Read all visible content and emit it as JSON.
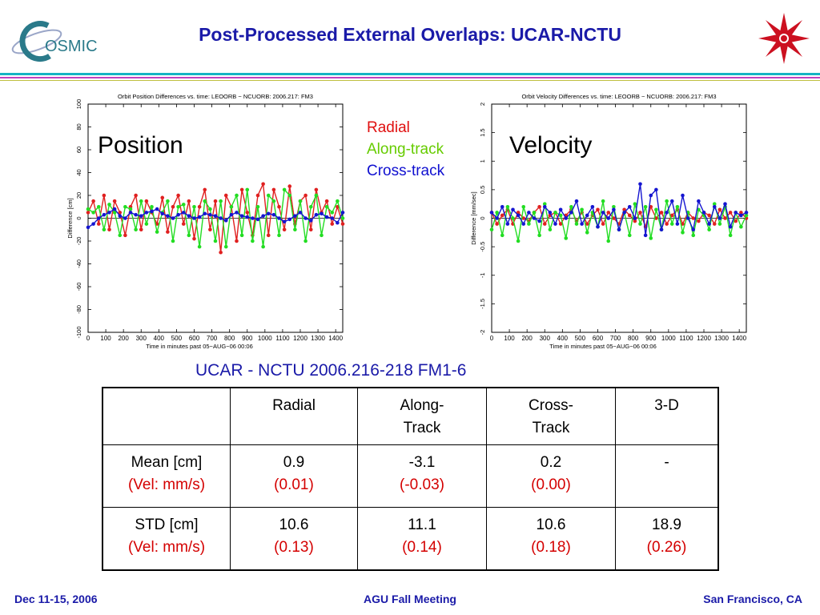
{
  "header": {
    "title": "Post-Processed External Overlaps: UCAR-NCTU",
    "logo_text": "OSMIC"
  },
  "legend": [
    {
      "label": "Radial",
      "color": "#e01010"
    },
    {
      "label": "Along-track",
      "color": "#66cc00"
    },
    {
      "label": "Cross-track",
      "color": "#1010d0"
    }
  ],
  "colors": {
    "radial": "#e02020",
    "along": "#22dd22",
    "cross": "#1515d0",
    "title_blue": "#1a1aa8",
    "table_red": "#d40000"
  },
  "chart_data": [
    {
      "type": "line",
      "label": "Position",
      "title": "Orbit Position Differences vs. time: LEOORB − NCUORB: 2006.217: FM3",
      "xlabel": "Time in minutes past 05−AUG−06 00:06",
      "ylabel": "Difference [cm]",
      "xlim": [
        0,
        1440
      ],
      "ylim": [
        -100,
        100
      ],
      "xticks": [
        0,
        100,
        200,
        300,
        400,
        500,
        600,
        700,
        800,
        900,
        1000,
        1100,
        1200,
        1300,
        1400
      ],
      "yticks": [
        -100,
        -80,
        -60,
        -40,
        -20,
        0,
        20,
        40,
        60,
        80,
        100
      ],
      "x": [
        0,
        30,
        60,
        90,
        120,
        150,
        180,
        210,
        240,
        270,
        300,
        330,
        360,
        390,
        420,
        450,
        480,
        510,
        540,
        570,
        600,
        630,
        660,
        690,
        720,
        750,
        780,
        810,
        840,
        870,
        900,
        930,
        960,
        990,
        1020,
        1050,
        1080,
        1110,
        1140,
        1170,
        1200,
        1230,
        1260,
        1290,
        1320,
        1350,
        1380,
        1410,
        1440
      ],
      "series": [
        {
          "name": "Radial",
          "values": [
            5,
            15,
            -5,
            20,
            -10,
            15,
            5,
            -15,
            10,
            20,
            -10,
            15,
            5,
            -5,
            18,
            -12,
            10,
            20,
            -5,
            15,
            -18,
            10,
            25,
            -10,
            15,
            -30,
            20,
            10,
            -20,
            25,
            5,
            -15,
            20,
            30,
            -15,
            25,
            10,
            -10,
            28,
            -5,
            15,
            20,
            -10,
            25,
            5,
            15,
            -5,
            10,
            -5
          ]
        },
        {
          "name": "Along-track",
          "values": [
            8,
            5,
            10,
            -10,
            12,
            5,
            -15,
            10,
            8,
            -10,
            15,
            -5,
            10,
            -12,
            5,
            15,
            -20,
            10,
            12,
            -15,
            10,
            -25,
            15,
            8,
            -20,
            15,
            -25,
            10,
            20,
            -15,
            25,
            -20,
            10,
            -25,
            20,
            15,
            -15,
            25,
            20,
            -10,
            15,
            -20,
            10,
            20,
            -15,
            10,
            5,
            15,
            0
          ]
        },
        {
          "name": "Cross-track",
          "values": [
            -8,
            -5,
            0,
            3,
            5,
            8,
            2,
            0,
            5,
            3,
            2,
            5,
            6,
            8,
            4,
            2,
            0,
            3,
            5,
            2,
            0,
            1,
            4,
            3,
            2,
            0,
            -2,
            3,
            5,
            2,
            1,
            0,
            -1,
            2,
            4,
            3,
            0,
            -3,
            -1,
            2,
            5,
            0,
            -2,
            3,
            4,
            1,
            0,
            -4,
            5
          ]
        }
      ]
    },
    {
      "type": "line",
      "label": "Velocity",
      "title": "Orbit Velocity Differences vs. time: LEOORB − NCUORB: 2006.217: FM3",
      "xlabel": "Time in minutes past 05−AUG−06 00:06",
      "ylabel": "Difference [mm/sec]",
      "xlim": [
        0,
        1440
      ],
      "ylim": [
        -2.0,
        2.0
      ],
      "xticks": [
        0,
        100,
        200,
        300,
        400,
        500,
        600,
        700,
        800,
        900,
        1000,
        1100,
        1200,
        1300,
        1400
      ],
      "yticks": [
        -2.0,
        -1.5,
        -1.0,
        -0.5,
        0.0,
        0.5,
        1.0,
        1.5,
        2.0
      ],
      "x": [
        0,
        30,
        60,
        90,
        120,
        150,
        180,
        210,
        240,
        270,
        300,
        330,
        360,
        390,
        420,
        450,
        480,
        510,
        540,
        570,
        600,
        630,
        660,
        690,
        720,
        750,
        780,
        810,
        840,
        870,
        900,
        930,
        960,
        990,
        1020,
        1050,
        1080,
        1110,
        1140,
        1170,
        1200,
        1230,
        1260,
        1290,
        1320,
        1350,
        1380,
        1410,
        1440
      ],
      "series": [
        {
          "name": "Radial",
          "values": [
            0.1,
            -0.1,
            0.05,
            0.15,
            -0.1,
            0.1,
            0.0,
            -0.05,
            0.1,
            0.2,
            -0.1,
            0.05,
            0.1,
            -0.1,
            0.05,
            0.15,
            -0.05,
            0.1,
            -0.1,
            0.05,
            0.15,
            -0.1,
            0.1,
            0.0,
            -0.1,
            0.15,
            0.05,
            -0.05,
            0.1,
            -0.15,
            0.2,
            0.0,
            0.1,
            -0.1,
            0.05,
            0.15,
            -0.1,
            0.1,
            0.0,
            -0.05,
            0.1,
            0.05,
            -0.1,
            0.15,
            0.0,
            0.1,
            -0.05,
            0.1,
            0.0
          ]
        },
        {
          "name": "Along-track",
          "values": [
            -0.2,
            0.1,
            -0.3,
            0.2,
            0.0,
            -0.4,
            0.2,
            -0.1,
            0.1,
            -0.3,
            0.25,
            -0.2,
            0.1,
            0.05,
            -0.35,
            0.2,
            -0.1,
            0.15,
            -0.25,
            0.1,
            -0.15,
            0.3,
            -0.4,
            0.2,
            -0.2,
            0.1,
            -0.3,
            0.25,
            -0.1,
            0.2,
            -0.35,
            0.15,
            -0.2,
            0.3,
            -0.1,
            0.2,
            -0.25,
            0.1,
            -0.3,
            0.15,
            0.05,
            -0.2,
            0.25,
            -0.1,
            0.2,
            -0.3,
            0.1,
            -0.15,
            0.05
          ]
        },
        {
          "name": "Cross-track",
          "values": [
            0.1,
            0.0,
            0.2,
            -0.1,
            0.15,
            0.05,
            -0.1,
            0.1,
            0.0,
            -0.05,
            0.2,
            0.1,
            -0.1,
            0.15,
            0.0,
            0.1,
            0.3,
            -0.1,
            0.05,
            0.2,
            -0.15,
            0.1,
            0.0,
            0.15,
            -0.2,
            0.1,
            0.2,
            0.0,
            0.6,
            -0.3,
            0.4,
            0.5,
            -0.2,
            0.1,
            0.3,
            -0.1,
            0.4,
            0.0,
            -0.2,
            0.3,
            0.1,
            -0.1,
            0.2,
            0.0,
            0.25,
            -0.15,
            0.1,
            0.05,
            0.1
          ]
        }
      ]
    }
  ],
  "table": {
    "caption": "UCAR - NCTU  2006.216-218  FM1-6",
    "headers": [
      "",
      "Radial",
      "Along-\nTrack",
      "Cross-\nTrack",
      "3-D"
    ],
    "rows": [
      {
        "label": "Mean [cm]",
        "sub": "(Vel: mm/s)",
        "values": [
          "0.9",
          "-3.1",
          "0.2",
          "-"
        ],
        "subs": [
          "(0.01)",
          "(-0.03)",
          "(0.00)",
          ""
        ]
      },
      {
        "label": "STD [cm]",
        "sub": "(Vel: mm/s)",
        "values": [
          "10.6",
          "11.1",
          "10.6",
          "18.9"
        ],
        "subs": [
          "(0.13)",
          "(0.14)",
          "(0.18)",
          "(0.26)"
        ]
      }
    ]
  },
  "footer": {
    "left": "Dec 11-15, 2006",
    "center": "AGU Fall Meeting",
    "right": "San Francisco, CA"
  }
}
